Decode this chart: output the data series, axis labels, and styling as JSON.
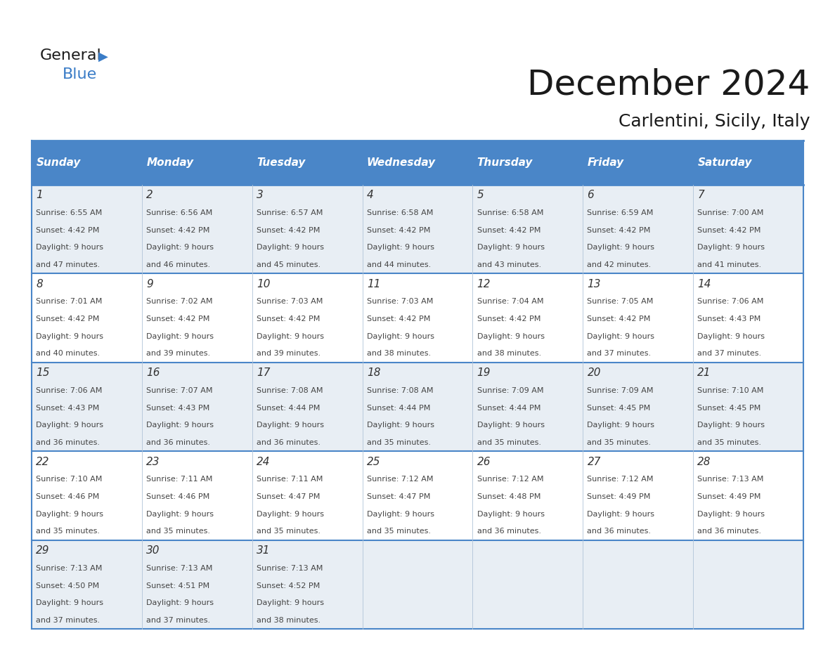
{
  "title": "December 2024",
  "subtitle": "Carlentini, Sicily, Italy",
  "header_bg_color": "#4a86c8",
  "header_text_color": "#ffffff",
  "cell_bg_color_odd": "#ffffff",
  "cell_bg_color_even": "#e8eef4",
  "border_color": "#4a86c8",
  "separator_color": "#a0b8d8",
  "text_color": "#333333",
  "days_of_week": [
    "Sunday",
    "Monday",
    "Tuesday",
    "Wednesday",
    "Thursday",
    "Friday",
    "Saturday"
  ],
  "weeks": [
    [
      {
        "day": 1,
        "sunrise": "6:55 AM",
        "sunset": "4:42 PM",
        "daylight_hours": 9,
        "daylight_minutes": 47
      },
      {
        "day": 2,
        "sunrise": "6:56 AM",
        "sunset": "4:42 PM",
        "daylight_hours": 9,
        "daylight_minutes": 46
      },
      {
        "day": 3,
        "sunrise": "6:57 AM",
        "sunset": "4:42 PM",
        "daylight_hours": 9,
        "daylight_minutes": 45
      },
      {
        "day": 4,
        "sunrise": "6:58 AM",
        "sunset": "4:42 PM",
        "daylight_hours": 9,
        "daylight_minutes": 44
      },
      {
        "day": 5,
        "sunrise": "6:58 AM",
        "sunset": "4:42 PM",
        "daylight_hours": 9,
        "daylight_minutes": 43
      },
      {
        "day": 6,
        "sunrise": "6:59 AM",
        "sunset": "4:42 PM",
        "daylight_hours": 9,
        "daylight_minutes": 42
      },
      {
        "day": 7,
        "sunrise": "7:00 AM",
        "sunset": "4:42 PM",
        "daylight_hours": 9,
        "daylight_minutes": 41
      }
    ],
    [
      {
        "day": 8,
        "sunrise": "7:01 AM",
        "sunset": "4:42 PM",
        "daylight_hours": 9,
        "daylight_minutes": 40
      },
      {
        "day": 9,
        "sunrise": "7:02 AM",
        "sunset": "4:42 PM",
        "daylight_hours": 9,
        "daylight_minutes": 39
      },
      {
        "day": 10,
        "sunrise": "7:03 AM",
        "sunset": "4:42 PM",
        "daylight_hours": 9,
        "daylight_minutes": 39
      },
      {
        "day": 11,
        "sunrise": "7:03 AM",
        "sunset": "4:42 PM",
        "daylight_hours": 9,
        "daylight_minutes": 38
      },
      {
        "day": 12,
        "sunrise": "7:04 AM",
        "sunset": "4:42 PM",
        "daylight_hours": 9,
        "daylight_minutes": 38
      },
      {
        "day": 13,
        "sunrise": "7:05 AM",
        "sunset": "4:42 PM",
        "daylight_hours": 9,
        "daylight_minutes": 37
      },
      {
        "day": 14,
        "sunrise": "7:06 AM",
        "sunset": "4:43 PM",
        "daylight_hours": 9,
        "daylight_minutes": 37
      }
    ],
    [
      {
        "day": 15,
        "sunrise": "7:06 AM",
        "sunset": "4:43 PM",
        "daylight_hours": 9,
        "daylight_minutes": 36
      },
      {
        "day": 16,
        "sunrise": "7:07 AM",
        "sunset": "4:43 PM",
        "daylight_hours": 9,
        "daylight_minutes": 36
      },
      {
        "day": 17,
        "sunrise": "7:08 AM",
        "sunset": "4:44 PM",
        "daylight_hours": 9,
        "daylight_minutes": 36
      },
      {
        "day": 18,
        "sunrise": "7:08 AM",
        "sunset": "4:44 PM",
        "daylight_hours": 9,
        "daylight_minutes": 35
      },
      {
        "day": 19,
        "sunrise": "7:09 AM",
        "sunset": "4:44 PM",
        "daylight_hours": 9,
        "daylight_minutes": 35
      },
      {
        "day": 20,
        "sunrise": "7:09 AM",
        "sunset": "4:45 PM",
        "daylight_hours": 9,
        "daylight_minutes": 35
      },
      {
        "day": 21,
        "sunrise": "7:10 AM",
        "sunset": "4:45 PM",
        "daylight_hours": 9,
        "daylight_minutes": 35
      }
    ],
    [
      {
        "day": 22,
        "sunrise": "7:10 AM",
        "sunset": "4:46 PM",
        "daylight_hours": 9,
        "daylight_minutes": 35
      },
      {
        "day": 23,
        "sunrise": "7:11 AM",
        "sunset": "4:46 PM",
        "daylight_hours": 9,
        "daylight_minutes": 35
      },
      {
        "day": 24,
        "sunrise": "7:11 AM",
        "sunset": "4:47 PM",
        "daylight_hours": 9,
        "daylight_minutes": 35
      },
      {
        "day": 25,
        "sunrise": "7:12 AM",
        "sunset": "4:47 PM",
        "daylight_hours": 9,
        "daylight_minutes": 35
      },
      {
        "day": 26,
        "sunrise": "7:12 AM",
        "sunset": "4:48 PM",
        "daylight_hours": 9,
        "daylight_minutes": 36
      },
      {
        "day": 27,
        "sunrise": "7:12 AM",
        "sunset": "4:49 PM",
        "daylight_hours": 9,
        "daylight_minutes": 36
      },
      {
        "day": 28,
        "sunrise": "7:13 AM",
        "sunset": "4:49 PM",
        "daylight_hours": 9,
        "daylight_minutes": 36
      }
    ],
    [
      {
        "day": 29,
        "sunrise": "7:13 AM",
        "sunset": "4:50 PM",
        "daylight_hours": 9,
        "daylight_minutes": 37
      },
      {
        "day": 30,
        "sunrise": "7:13 AM",
        "sunset": "4:51 PM",
        "daylight_hours": 9,
        "daylight_minutes": 37
      },
      {
        "day": 31,
        "sunrise": "7:13 AM",
        "sunset": "4:52 PM",
        "daylight_hours": 9,
        "daylight_minutes": 38
      },
      null,
      null,
      null,
      null
    ]
  ]
}
